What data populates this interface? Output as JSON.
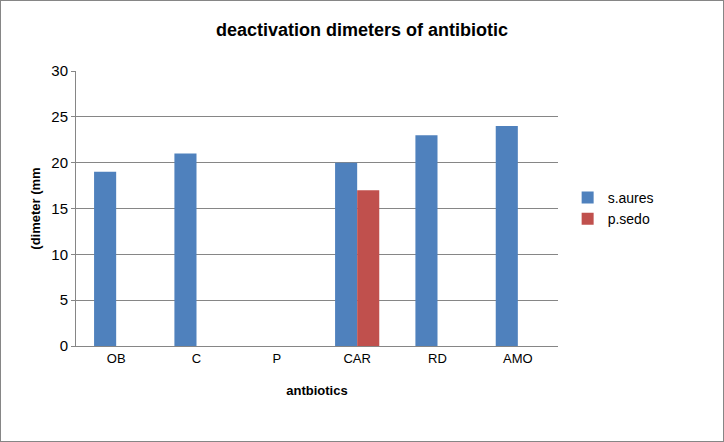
{
  "chart_data": {
    "type": "bar",
    "title": "deactivation dimeters of antibiotic",
    "x_label": "antbiotics",
    "y_label": "(dimeter (mm",
    "categories": [
      "OB",
      "C",
      "P",
      "CAR",
      "RD",
      "AMO"
    ],
    "series": [
      {
        "name": "s.aures",
        "color": "#4f81bd",
        "values": [
          19,
          21,
          0,
          20,
          23,
          24
        ]
      },
      {
        "name": "p.sedo",
        "color": "#c0504d",
        "values": [
          0,
          0,
          0,
          17,
          0,
          0
        ]
      }
    ],
    "ylim": [
      0,
      30
    ],
    "yticks": [
      0,
      5,
      10,
      15,
      20,
      25,
      30
    ],
    "grid": true,
    "legend": "right"
  }
}
